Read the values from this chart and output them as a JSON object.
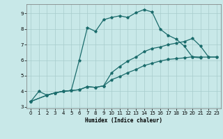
{
  "xlabel": "Humidex (Indice chaleur)",
  "bg_color": "#c8e8e8",
  "line_color": "#1a6b6b",
  "grid_color": "#a8cccc",
  "xlim": [
    -0.5,
    23.5
  ],
  "ylim": [
    2.9,
    9.6
  ],
  "xticks": [
    0,
    1,
    2,
    3,
    4,
    5,
    6,
    7,
    8,
    9,
    10,
    11,
    12,
    13,
    14,
    15,
    16,
    17,
    18,
    19,
    20,
    21,
    22,
    23
  ],
  "yticks": [
    3,
    4,
    5,
    6,
    7,
    8,
    9
  ],
  "line1_x": [
    0,
    1,
    2,
    3,
    4,
    5,
    6,
    7,
    8,
    9,
    10,
    11,
    12,
    13,
    14,
    15,
    16,
    17,
    18,
    19,
    20,
    21
  ],
  "line1_y": [
    3.35,
    4.0,
    3.75,
    3.9,
    4.0,
    4.05,
    6.0,
    8.1,
    7.85,
    8.6,
    8.75,
    8.85,
    8.75,
    9.05,
    9.25,
    9.1,
    8.0,
    7.6,
    7.35,
    6.9,
    6.2,
    6.15
  ],
  "line2_x": [
    0,
    2,
    3,
    4,
    5,
    6,
    7,
    8,
    9,
    10,
    11,
    12,
    13,
    14,
    15,
    16,
    17,
    18,
    19,
    20,
    21,
    22,
    23
  ],
  "line2_y": [
    3.35,
    3.75,
    3.9,
    4.0,
    4.05,
    4.1,
    4.3,
    4.25,
    4.35,
    4.75,
    4.95,
    5.2,
    5.4,
    5.65,
    5.8,
    5.95,
    6.05,
    6.1,
    6.15,
    6.22,
    6.2,
    6.2,
    6.2
  ],
  "line3_x": [
    0,
    2,
    3,
    4,
    5,
    6,
    7,
    8,
    9,
    10,
    11,
    12,
    13,
    14,
    15,
    16,
    17,
    18,
    19,
    20,
    21,
    22,
    23
  ],
  "line3_y": [
    3.35,
    3.75,
    3.9,
    4.0,
    4.05,
    4.1,
    4.3,
    4.25,
    4.35,
    5.2,
    5.6,
    5.95,
    6.2,
    6.55,
    6.75,
    6.85,
    7.0,
    7.1,
    7.2,
    7.4,
    6.9,
    6.2,
    6.2
  ]
}
